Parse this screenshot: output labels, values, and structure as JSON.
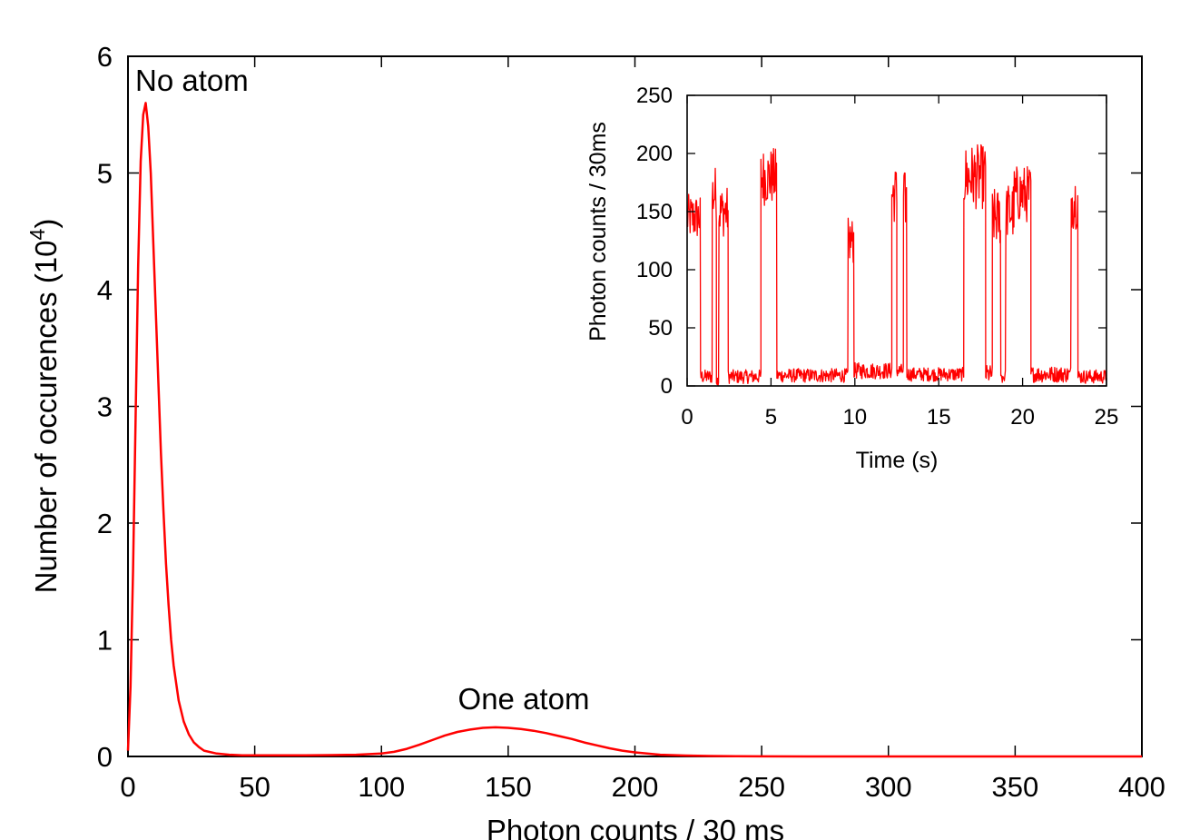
{
  "chart_data": [
    {
      "id": "main",
      "type": "line",
      "title": "",
      "xlabel": "Photon counts / 30 ms",
      "ylabel_main": "Number of occurences (10",
      "ylabel_exp": "4",
      "ylabel_close": ")",
      "xlim": [
        0,
        400
      ],
      "ylim": [
        0,
        6
      ],
      "xticks": [
        0,
        50,
        100,
        150,
        200,
        250,
        300,
        350,
        400
      ],
      "yticks": [
        0,
        1,
        2,
        3,
        4,
        5,
        6
      ],
      "grid": false,
      "legend": "none",
      "series": [
        {
          "color": "#ff0000",
          "x": [
            0,
            1,
            2,
            3,
            4,
            5,
            6,
            7,
            8,
            9,
            10,
            11,
            12,
            13,
            14,
            15,
            16,
            17,
            18,
            20,
            22,
            24,
            26,
            28,
            30,
            35,
            40,
            45,
            50,
            60,
            70,
            80,
            90,
            100,
            105,
            110,
            115,
            120,
            125,
            130,
            135,
            140,
            145,
            150,
            155,
            160,
            165,
            170,
            175,
            180,
            185,
            190,
            195,
            200,
            210,
            220,
            230,
            240,
            250,
            275,
            300,
            350,
            400
          ],
          "y": [
            0.05,
            0.6,
            1.6,
            2.9,
            4.2,
            5.1,
            5.5,
            5.6,
            5.4,
            5.0,
            4.4,
            3.8,
            3.2,
            2.6,
            2.1,
            1.65,
            1.3,
            1.0,
            0.78,
            0.48,
            0.3,
            0.19,
            0.12,
            0.08,
            0.05,
            0.025,
            0.015,
            0.01,
            0.01,
            0.01,
            0.01,
            0.012,
            0.015,
            0.025,
            0.04,
            0.065,
            0.1,
            0.14,
            0.18,
            0.21,
            0.23,
            0.245,
            0.25,
            0.245,
            0.235,
            0.22,
            0.2,
            0.175,
            0.15,
            0.12,
            0.095,
            0.07,
            0.05,
            0.035,
            0.015,
            0.008,
            0.004,
            0.002,
            0.001,
            0.0,
            0.0,
            0.0,
            0.0
          ]
        }
      ],
      "annotations": [
        {
          "text": "No atom",
          "x": 7,
          "y": 5.6
        },
        {
          "text": "One atom",
          "x": 145,
          "y": 0.25
        }
      ]
    },
    {
      "id": "inset",
      "type": "line",
      "title": "",
      "xlabel": "Time (s)",
      "ylabel": "Photon counts / 30ms",
      "xlim": [
        0,
        25
      ],
      "ylim": [
        0,
        250
      ],
      "xticks": [
        0,
        5,
        10,
        15,
        20,
        25
      ],
      "yticks": [
        0,
        50,
        100,
        150,
        200,
        250
      ],
      "grid": false,
      "legend": "none",
      "color": "#ff0000",
      "dt": 0.03,
      "segments": [
        {
          "t0": 0.0,
          "t1": 0.8,
          "level": 145,
          "noise": 20
        },
        {
          "t0": 0.8,
          "t1": 1.5,
          "level": 8,
          "noise": 6
        },
        {
          "t0": 1.5,
          "t1": 1.75,
          "level": 165,
          "noise": 25
        },
        {
          "t0": 1.75,
          "t1": 1.9,
          "level": 5,
          "noise": 5
        },
        {
          "t0": 1.9,
          "t1": 2.45,
          "level": 150,
          "noise": 22
        },
        {
          "t0": 2.45,
          "t1": 4.4,
          "level": 8,
          "noise": 6
        },
        {
          "t0": 4.4,
          "t1": 5.35,
          "level": 180,
          "noise": 25
        },
        {
          "t0": 5.35,
          "t1": 9.6,
          "level": 9,
          "noise": 6
        },
        {
          "t0": 9.6,
          "t1": 9.95,
          "level": 125,
          "noise": 20
        },
        {
          "t0": 9.95,
          "t1": 12.2,
          "level": 13,
          "noise": 7
        },
        {
          "t0": 12.2,
          "t1": 12.5,
          "level": 165,
          "noise": 25
        },
        {
          "t0": 12.5,
          "t1": 12.9,
          "level": 13,
          "noise": 6
        },
        {
          "t0": 12.9,
          "t1": 13.1,
          "level": 160,
          "noise": 25
        },
        {
          "t0": 13.1,
          "t1": 16.5,
          "level": 10,
          "noise": 6
        },
        {
          "t0": 16.5,
          "t1": 17.8,
          "level": 180,
          "noise": 28
        },
        {
          "t0": 17.8,
          "t1": 18.2,
          "level": 10,
          "noise": 8
        },
        {
          "t0": 18.2,
          "t1": 18.7,
          "level": 145,
          "noise": 25
        },
        {
          "t0": 18.7,
          "t1": 19.0,
          "level": 8,
          "noise": 6
        },
        {
          "t0": 19.0,
          "t1": 19.5,
          "level": 150,
          "noise": 25
        },
        {
          "t0": 19.5,
          "t1": 20.5,
          "level": 165,
          "noise": 25
        },
        {
          "t0": 20.5,
          "t1": 22.9,
          "level": 10,
          "noise": 7
        },
        {
          "t0": 22.9,
          "t1": 23.3,
          "level": 160,
          "noise": 25
        },
        {
          "t0": 23.3,
          "t1": 25.0,
          "level": 8,
          "noise": 6
        }
      ]
    }
  ]
}
